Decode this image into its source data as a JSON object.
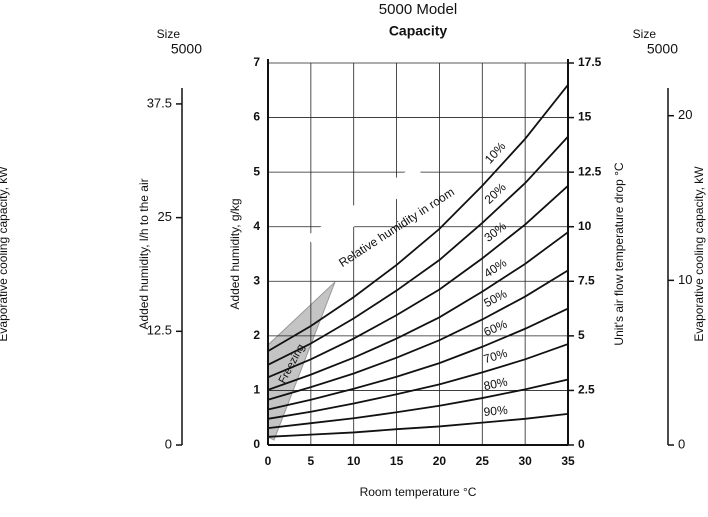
{
  "chart_data": {
    "type": "line",
    "title": "5000 Model",
    "subtitle": "Capacity",
    "xlabel": "Room temperature °C",
    "ylabel": "Added humidity, g/kg",
    "annotations": [
      "Relative humidity in room",
      "Freezing"
    ],
    "side_label": "Evaporative cooling capacity, kW",
    "x": [
      0,
      5,
      10,
      15,
      20,
      25,
      30,
      35
    ],
    "xlim": [
      0,
      35
    ],
    "xticks": [
      0,
      5,
      10,
      15,
      20,
      25,
      30,
      35
    ],
    "ylim": [
      0,
      7
    ],
    "yticks": [
      0,
      1,
      2,
      3,
      4,
      5,
      6,
      7
    ],
    "grid": true,
    "series": [
      {
        "name": "10%",
        "color": "#111111",
        "values": [
          1.72,
          2.18,
          2.71,
          3.3,
          3.96,
          4.75,
          5.61,
          6.6
        ]
      },
      {
        "name": "20%",
        "color": "#111111",
        "values": [
          1.47,
          1.86,
          2.32,
          2.83,
          3.39,
          4.07,
          4.8,
          5.65
        ]
      },
      {
        "name": "30%",
        "color": "#111111",
        "values": [
          1.24,
          1.57,
          1.95,
          2.38,
          2.85,
          3.42,
          4.04,
          4.75
        ]
      },
      {
        "name": "40%",
        "color": "#111111",
        "values": [
          1.01,
          1.29,
          1.6,
          1.95,
          2.34,
          2.81,
          3.32,
          3.9
        ]
      },
      {
        "name": "50%",
        "color": "#111111",
        "values": [
          0.83,
          1.06,
          1.31,
          1.6,
          1.92,
          2.3,
          2.72,
          3.2
        ]
      },
      {
        "name": "60%",
        "color": "#111111",
        "values": [
          0.65,
          0.83,
          1.03,
          1.25,
          1.5,
          1.8,
          2.13,
          2.5
        ]
      },
      {
        "name": "70%",
        "color": "#111111",
        "values": [
          0.48,
          0.61,
          0.76,
          0.93,
          1.11,
          1.33,
          1.57,
          1.85
        ]
      },
      {
        "name": "80%",
        "color": "#111111",
        "values": [
          0.31,
          0.4,
          0.49,
          0.6,
          0.72,
          0.86,
          1.02,
          1.2
        ]
      },
      {
        "name": "90%",
        "color": "#111111",
        "values": [
          0.15,
          0.19,
          0.23,
          0.29,
          0.34,
          0.41,
          0.48,
          0.57
        ]
      }
    ],
    "axes": [
      {
        "label": "Added humidity, l/h to the air",
        "header": "Size",
        "model": "5000",
        "ylim": [
          0,
          42
        ],
        "yticks": [
          0,
          12.5,
          25,
          37.5
        ]
      },
      {
        "label": "Unit's air flow temperature drop °C",
        "ylim": [
          0,
          17.5
        ],
        "yticks": [
          0,
          2.5,
          5,
          7.5,
          10,
          12.5,
          15,
          17.5
        ]
      },
      {
        "label": "Evaporative cooling capacity, kW",
        "header": "Size",
        "model": "5000",
        "ylim": [
          0,
          23.2
        ],
        "yticks": [
          0,
          10,
          20
        ]
      }
    ]
  }
}
